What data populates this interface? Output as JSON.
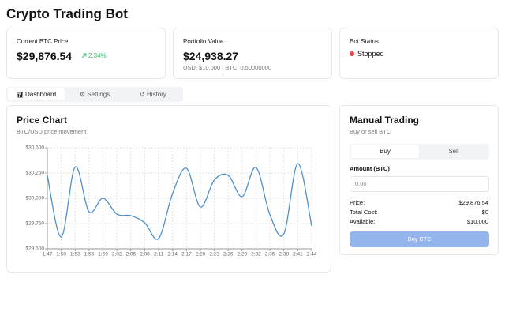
{
  "header": {
    "title": "Crypto Trading Bot"
  },
  "cards": [
    {
      "label": "Current BTC Price",
      "value": "$29,876.54",
      "change": "2.34%"
    },
    {
      "label": "Portfolio Value",
      "value": "$24,938.27",
      "detail": "USD: $10,000 | BTC: 0.50000000"
    },
    {
      "label": "Bot Status",
      "value": "Stopped"
    }
  ],
  "tabs": [
    "Dashboard",
    "Settings",
    "History"
  ],
  "chart_data": {
    "type": "line",
    "title": "Price Chart",
    "subtitle": "BTC/USD price movement",
    "categories": [
      "1:47",
      "1:50",
      "1:53",
      "1:56",
      "1:59",
      "2:02",
      "2:05",
      "2:08",
      "2:11",
      "2:14",
      "2:17",
      "2:20",
      "2:23",
      "2:26",
      "2:29",
      "2:32",
      "2:35",
      "2:38",
      "2:41",
      "2:44"
    ],
    "series": [
      {
        "name": "BTC/USD",
        "color": "#4f8fc9",
        "values": [
          30226,
          29617,
          30310,
          29867,
          30000,
          29844,
          29828,
          29758,
          29602,
          30047,
          30297,
          29914,
          30180,
          30227,
          30016,
          30305,
          29836,
          29648,
          30344,
          29727
        ]
      }
    ],
    "ylim": [
      29500,
      30500
    ],
    "yticks": [
      {
        "value": 29500,
        "label": "$29,500"
      },
      {
        "value": 29750,
        "label": "$29,750"
      },
      {
        "value": 30000,
        "label": "$30,000"
      },
      {
        "value": 30250,
        "label": "$30,250"
      },
      {
        "value": 30500,
        "label": "$30,500"
      }
    ],
    "grid": true
  },
  "trading": {
    "title": "Manual Trading",
    "subtitle": "Buy or sell BTC",
    "modes": [
      "Buy",
      "Sell"
    ],
    "amount_label": "Amount (BTC)",
    "amount_placeholder": "0.00",
    "rows": [
      [
        "Price:",
        "$29,876.54"
      ],
      [
        "Total Cost:",
        "$0"
      ],
      [
        "Available:",
        "$10,000"
      ]
    ],
    "button": "Buy BTC"
  }
}
